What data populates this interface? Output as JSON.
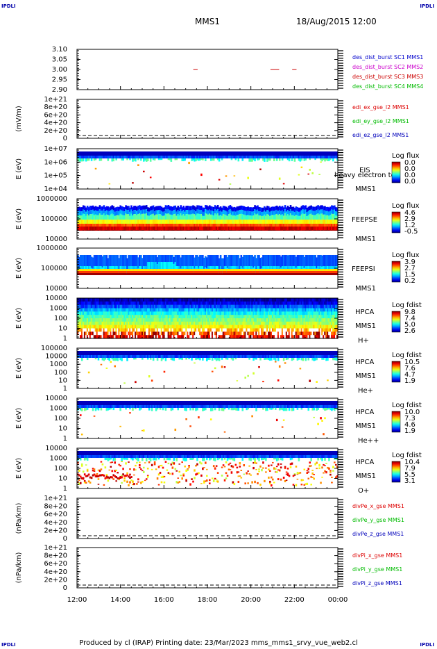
{
  "page": {
    "corner_label": "IPDLI",
    "header": {
      "mission": "MMS1",
      "date": "18/Aug/2015 12:00"
    },
    "footer": {
      "text": "Produced by cl (IRAP)   Printing date: 23/Mar/2023   mms_mms1_srvy_vue_web2.cl"
    }
  },
  "colors": {
    "mms1": "#0000cc",
    "mms2": "#cc00cc",
    "mms3": "#cc0000",
    "mms4": "#00bb00",
    "red": "#dd0000",
    "green": "#00bb00",
    "blue": "#0000bb"
  },
  "chart_data": [
    {
      "id": "p1",
      "type": "line",
      "yticks": [
        "3.10",
        "3.05",
        "3.00",
        "2.95",
        "2.90"
      ],
      "ylim": [
        2.9,
        3.1
      ],
      "series": [
        {
          "name": "des_dist_burst SC1 MMS1",
          "color": "#0000cc",
          "segments": []
        },
        {
          "name": "des_dist_burst SC2 MMS2",
          "color": "#cc00cc",
          "segments": []
        },
        {
          "name": "des_dist_burst SC3 MMS3",
          "color": "#cc0000",
          "segments": [
            [
              17.35,
              17.55
            ],
            [
              20.9,
              21.3
            ],
            [
              21.9,
              22.1
            ]
          ]
        },
        {
          "name": "des_dist_burst SC4 MMS4",
          "color": "#00bb00",
          "segments": []
        }
      ]
    },
    {
      "id": "p2",
      "type": "line",
      "ylabel": "(mV/m)",
      "yticks": [
        "1e+21",
        "8e+20",
        "6e+20",
        "4e+20",
        "2e+20",
        "0"
      ],
      "series": [
        {
          "name": "edi_ex_gse_l2 MMS1",
          "color": "#dd0000"
        },
        {
          "name": "edi_ey_gse_l2 MMS1",
          "color": "#00bb00"
        },
        {
          "name": "edi_ez_gse_l2 MMS1",
          "color": "#0000bb"
        }
      ]
    },
    {
      "id": "p3",
      "type": "heatmap",
      "ylabel": "E (eV)",
      "yticks": [
        "1e+07",
        "1e+06",
        "1e+05",
        "1e+04"
      ],
      "labels": [
        "EIS",
        "heavy electron to",
        "MMS1"
      ],
      "colorbar": {
        "title": "Log flux",
        "ticks": [
          "0.0",
          "0.0",
          "0.0",
          "0.0"
        ]
      }
    },
    {
      "id": "p4",
      "type": "heatmap",
      "ylabel": "E (eV)",
      "yticks": [
        "1000000",
        "100000",
        "10000"
      ],
      "labels": [
        "FEEPSE",
        "MMS1"
      ],
      "colorbar": {
        "title": "Log flux",
        "ticks": [
          "4.6",
          "2.9",
          "1.2",
          "-0.5"
        ]
      }
    },
    {
      "id": "p5",
      "type": "heatmap",
      "ylabel": "E (eV)",
      "yticks": [
        "1000000",
        "100000",
        "10000"
      ],
      "labels": [
        "FEEPSI",
        "MMS1"
      ],
      "colorbar": {
        "title": "Log flux",
        "ticks": [
          "3.9",
          "2.7",
          "1.5",
          "0.2"
        ]
      }
    },
    {
      "id": "p6",
      "type": "heatmap",
      "ylabel": "E (eV)",
      "yticks": [
        "10000",
        "1000",
        "100",
        "10",
        "1"
      ],
      "labels": [
        "HPCA",
        "MMS1",
        "H+"
      ],
      "colorbar": {
        "title": "Log fdist",
        "ticks": [
          "9.8",
          "7.4",
          "5.0",
          "2.6"
        ]
      }
    },
    {
      "id": "p7",
      "type": "heatmap",
      "ylabel": "E (eV)",
      "yticks": [
        "100000",
        "10000",
        "1000",
        "100",
        "10",
        "1"
      ],
      "labels": [
        "HPCA",
        "MMS1",
        "He+"
      ],
      "colorbar": {
        "title": "Log fdist",
        "ticks": [
          "10.5",
          "7.6",
          "4.7",
          "1.9"
        ]
      }
    },
    {
      "id": "p8",
      "type": "heatmap",
      "ylabel": "E (eV)",
      "yticks": [
        "10000",
        "1000",
        "100",
        "10",
        "1"
      ],
      "labels": [
        "HPCA",
        "MMS1",
        "He++"
      ],
      "colorbar": {
        "title": "Log fdist",
        "ticks": [
          "10.0",
          "7.3",
          "4.6",
          "1.9"
        ]
      }
    },
    {
      "id": "p9",
      "type": "heatmap",
      "ylabel": "E (eV)",
      "yticks": [
        "10000",
        "1000",
        "100",
        "10",
        "1"
      ],
      "labels": [
        "HPCA",
        "MMS1",
        "O+"
      ],
      "colorbar": {
        "title": "Log fdist",
        "ticks": [
          "10.4",
          "7.9",
          "5.5",
          "3.1"
        ]
      }
    },
    {
      "id": "p10",
      "type": "line",
      "ylabel": "(nPa/km)",
      "yticks": [
        "1e+21",
        "8e+20",
        "6e+20",
        "4e+20",
        "2e+20",
        "0"
      ],
      "series": [
        {
          "name": "divPe_x_gse MMS1",
          "color": "#dd0000"
        },
        {
          "name": "divPe_y_gse MMS1",
          "color": "#00bb00"
        },
        {
          "name": "divPe_z_gse MMS1",
          "color": "#0000bb"
        }
      ]
    },
    {
      "id": "p11",
      "type": "line",
      "ylabel": "(nPa/km)",
      "yticks": [
        "1e+21",
        "8e+20",
        "6e+20",
        "4e+20",
        "2e+20",
        "0"
      ],
      "series": [
        {
          "name": "divPi_x_gse MMS1",
          "color": "#dd0000"
        },
        {
          "name": "divPi_y_gse MMS1",
          "color": "#00bb00"
        },
        {
          "name": "divPi_z_gse MMS1",
          "color": "#0000bb"
        }
      ]
    }
  ],
  "xaxis": {
    "ticks": [
      "12:00",
      "14:00",
      "16:00",
      "18:00",
      "20:00",
      "22:00",
      "00:00"
    ],
    "range_hours": [
      12,
      24
    ]
  }
}
